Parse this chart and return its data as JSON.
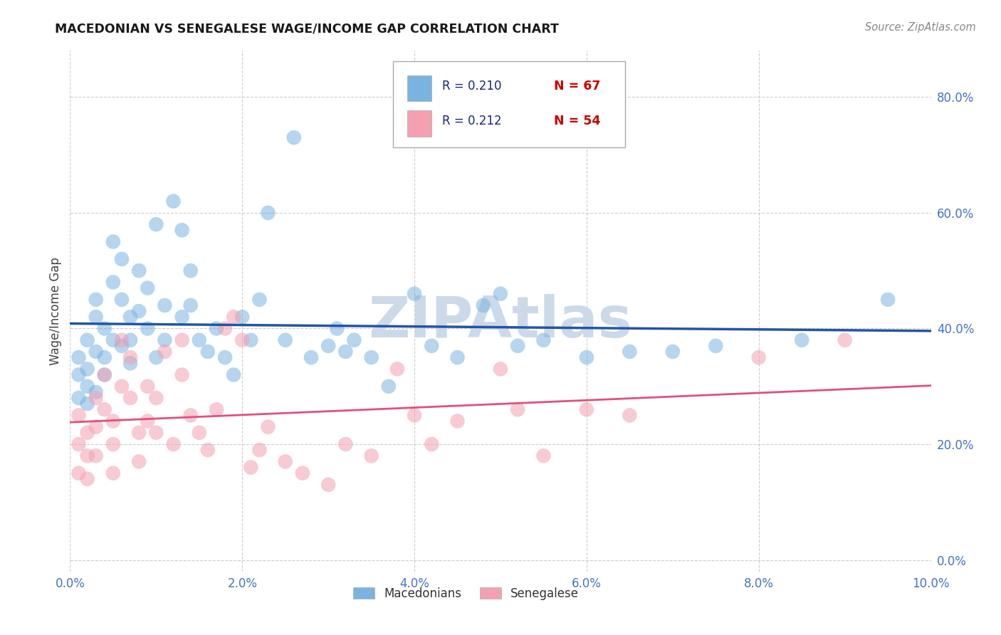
{
  "title": "MACEDONIAN VS SENEGALESE WAGE/INCOME GAP CORRELATION CHART",
  "source": "Source: ZipAtlas.com",
  "ylabel": "Wage/Income Gap",
  "xmin": 0.0,
  "xmax": 0.1,
  "ymin": -0.02,
  "ymax": 0.88,
  "R_macedonian": 0.21,
  "N_macedonian": 67,
  "R_senegalese": 0.212,
  "N_senegalese": 54,
  "macedonian_color": "#7ab3e0",
  "senegalese_color": "#f4a0b0",
  "macedonian_line_color": "#2255a4",
  "senegalese_line_color": "#e05080",
  "background_color": "#ffffff",
  "grid_color": "#cccccc",
  "watermark_color": "#ccd9e8",
  "tick_color": "#4472c4",
  "macedonian_x": [
    0.001,
    0.001,
    0.001,
    0.002,
    0.002,
    0.002,
    0.002,
    0.003,
    0.003,
    0.003,
    0.003,
    0.004,
    0.004,
    0.004,
    0.005,
    0.005,
    0.005,
    0.006,
    0.006,
    0.006,
    0.007,
    0.007,
    0.007,
    0.008,
    0.008,
    0.009,
    0.009,
    0.01,
    0.01,
    0.011,
    0.011,
    0.012,
    0.013,
    0.013,
    0.014,
    0.014,
    0.015,
    0.016,
    0.017,
    0.018,
    0.019,
    0.02,
    0.021,
    0.022,
    0.023,
    0.025,
    0.026,
    0.028,
    0.03,
    0.031,
    0.032,
    0.033,
    0.035,
    0.037,
    0.04,
    0.042,
    0.045,
    0.048,
    0.05,
    0.052,
    0.055,
    0.06,
    0.065,
    0.07,
    0.075,
    0.085,
    0.095
  ],
  "macedonian_y": [
    0.35,
    0.32,
    0.28,
    0.38,
    0.33,
    0.3,
    0.27,
    0.45,
    0.42,
    0.36,
    0.29,
    0.4,
    0.35,
    0.32,
    0.55,
    0.48,
    0.38,
    0.52,
    0.45,
    0.37,
    0.42,
    0.38,
    0.34,
    0.5,
    0.43,
    0.47,
    0.4,
    0.58,
    0.35,
    0.44,
    0.38,
    0.62,
    0.57,
    0.42,
    0.5,
    0.44,
    0.38,
    0.36,
    0.4,
    0.35,
    0.32,
    0.42,
    0.38,
    0.45,
    0.6,
    0.38,
    0.73,
    0.35,
    0.37,
    0.4,
    0.36,
    0.38,
    0.35,
    0.3,
    0.46,
    0.37,
    0.35,
    0.44,
    0.46,
    0.37,
    0.38,
    0.35,
    0.36,
    0.36,
    0.37,
    0.38,
    0.45
  ],
  "senegalese_x": [
    0.001,
    0.001,
    0.001,
    0.002,
    0.002,
    0.002,
    0.003,
    0.003,
    0.003,
    0.004,
    0.004,
    0.005,
    0.005,
    0.005,
    0.006,
    0.006,
    0.007,
    0.007,
    0.008,
    0.008,
    0.009,
    0.009,
    0.01,
    0.01,
    0.011,
    0.012,
    0.013,
    0.013,
    0.014,
    0.015,
    0.016,
    0.017,
    0.018,
    0.019,
    0.02,
    0.021,
    0.022,
    0.023,
    0.025,
    0.027,
    0.03,
    0.032,
    0.035,
    0.038,
    0.04,
    0.042,
    0.045,
    0.05,
    0.052,
    0.055,
    0.06,
    0.065,
    0.08,
    0.09
  ],
  "senegalese_y": [
    0.25,
    0.2,
    0.15,
    0.22,
    0.18,
    0.14,
    0.28,
    0.23,
    0.18,
    0.32,
    0.26,
    0.24,
    0.2,
    0.15,
    0.38,
    0.3,
    0.35,
    0.28,
    0.22,
    0.17,
    0.3,
    0.24,
    0.28,
    0.22,
    0.36,
    0.2,
    0.38,
    0.32,
    0.25,
    0.22,
    0.19,
    0.26,
    0.4,
    0.42,
    0.38,
    0.16,
    0.19,
    0.23,
    0.17,
    0.15,
    0.13,
    0.2,
    0.18,
    0.33,
    0.25,
    0.2,
    0.24,
    0.33,
    0.26,
    0.18,
    0.26,
    0.25,
    0.35,
    0.38
  ]
}
